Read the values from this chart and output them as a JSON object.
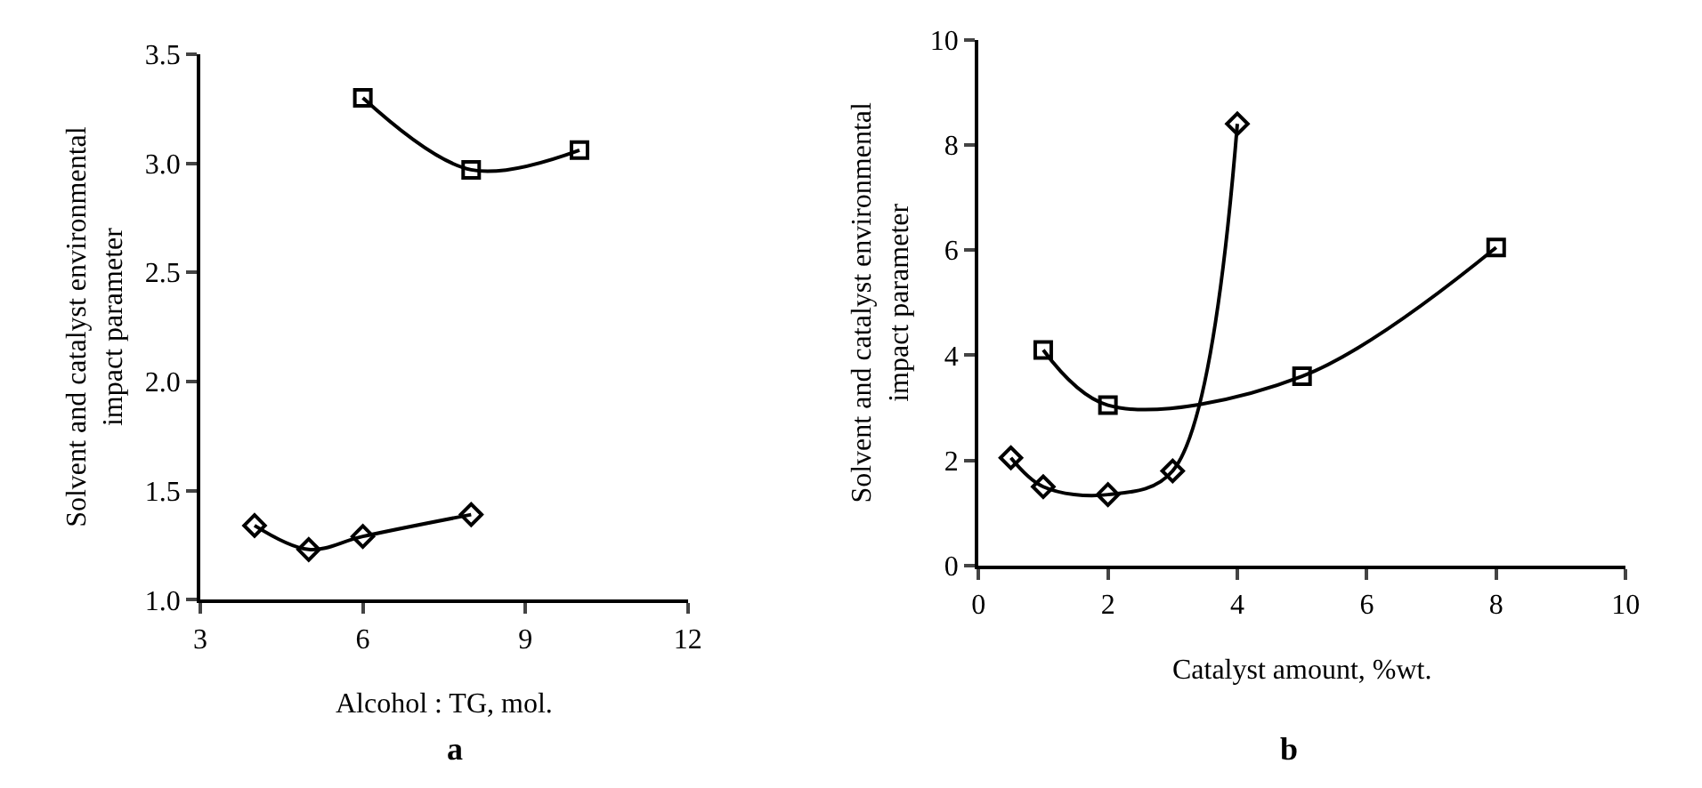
{
  "chart_data": [
    {
      "type": "line",
      "xlabel": "Alcohol : TG, mol.",
      "ylabel": "Solvent and catalyst environmental impact parameter",
      "annotations": [
        "a"
      ],
      "series": [
        {
          "color": "#000000",
          "marker": "square",
          "x": [
            6,
            8,
            10
          ],
          "values": [
            3.3,
            2.97,
            3.06
          ]
        },
        {
          "color": "#000000",
          "marker": "diamond",
          "x": [
            4,
            5,
            6,
            8
          ],
          "values": [
            1.34,
            1.23,
            1.29,
            1.39
          ]
        }
      ],
      "xlim": [
        3,
        12
      ],
      "xticks": [
        3,
        6,
        9,
        12
      ],
      "ylim": [
        1,
        3.5
      ],
      "yticks": [
        {
          "value": 1,
          "label": "1.0"
        },
        1.5,
        {
          "value": 2,
          "label": "2.0"
        },
        2.5,
        {
          "value": 3,
          "label": "3.0"
        },
        3.5
      ],
      "line_style": "solid"
    },
    {
      "type": "line",
      "xlabel": "Catalyst amount, %wt.",
      "ylabel": "Solvent and catalyst environmental impact parameter",
      "annotations": [
        "b"
      ],
      "series": [
        {
          "color": "#000000",
          "marker": "square",
          "x": [
            1,
            2,
            5,
            8
          ],
          "values": [
            4.1,
            3.05,
            3.6,
            6.05
          ]
        },
        {
          "color": "#000000",
          "marker": "diamond",
          "x": [
            0.5,
            1,
            2,
            3,
            4
          ],
          "values": [
            2.05,
            1.5,
            1.35,
            1.8,
            8.4
          ]
        }
      ],
      "xlim": [
        0,
        10
      ],
      "xticks": [
        0,
        2,
        4,
        6,
        8,
        10
      ],
      "ylim": [
        0,
        10
      ],
      "yticks": [
        0,
        2,
        4,
        6,
        8,
        10
      ],
      "line_style": "solid"
    }
  ]
}
